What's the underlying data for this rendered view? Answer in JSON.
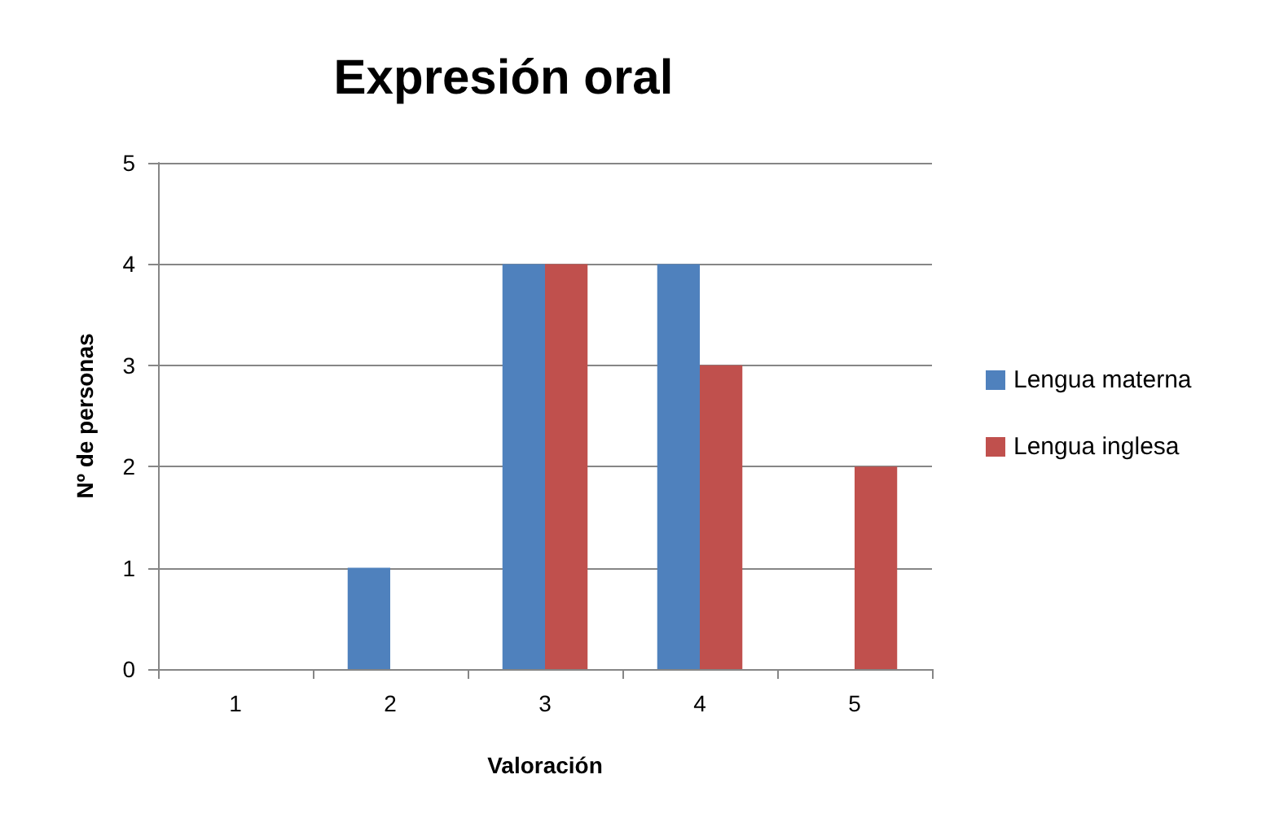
{
  "chart_data": {
    "type": "bar",
    "title": "Expresión oral",
    "xlabel": "Valoración",
    "ylabel": "Nº de personas",
    "categories": [
      "1",
      "2",
      "3",
      "4",
      "5"
    ],
    "series": [
      {
        "name": "Lengua materna",
        "color": "#4f81bd",
        "values": [
          0,
          1,
          4,
          4,
          0
        ]
      },
      {
        "name": "Lengua inglesa",
        "color": "#c0504d",
        "values": [
          0,
          0,
          4,
          3,
          2
        ]
      }
    ],
    "ylim": [
      0,
      5
    ],
    "yticks": [
      0,
      1,
      2,
      3,
      4,
      5
    ],
    "grid": "y",
    "legend": "right"
  }
}
